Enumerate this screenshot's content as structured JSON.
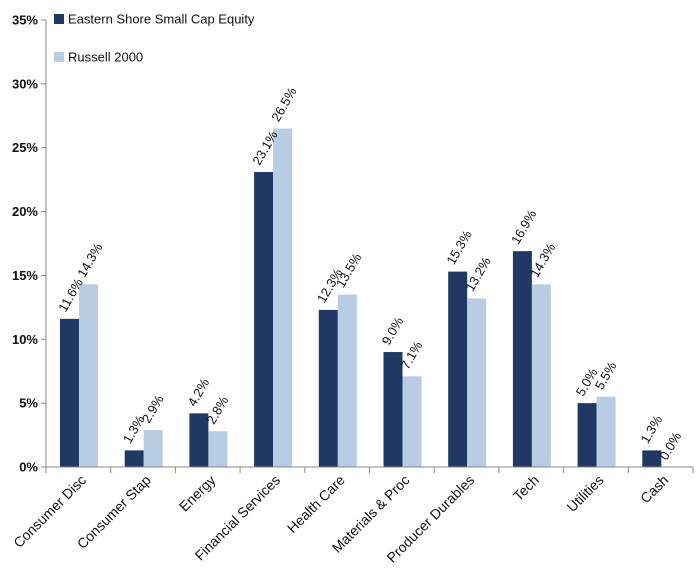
{
  "chart_data": {
    "type": "bar",
    "categories": [
      "Consumer Disc",
      "Consumer Stap",
      "Energy",
      "Financial Services",
      "Health Care",
      "Materials & Proc",
      "Producer Durables",
      "Tech",
      "Utilities",
      "Cash"
    ],
    "series": [
      {
        "name": "Eastern Shore Small Cap Equity",
        "color": "#1f3864",
        "values": [
          11.6,
          1.3,
          4.2,
          23.1,
          12.3,
          9.0,
          15.3,
          16.9,
          5.0,
          1.3
        ],
        "labels": [
          "11.6%",
          "1.3%",
          "4.2%",
          "23.1%",
          "12.3%",
          "9.0%",
          "15.3%",
          "16.9%",
          "5.0%",
          "1.3%"
        ]
      },
      {
        "name": "Russell 2000",
        "color": "#b8cde4",
        "values": [
          14.3,
          2.9,
          2.8,
          26.5,
          13.5,
          7.1,
          13.2,
          14.3,
          5.5,
          0.0
        ],
        "labels": [
          "14.3%",
          "2.9%",
          "2.8%",
          "26.5%",
          "13.5%",
          "7.1%",
          "13.2%",
          "14.3%",
          "5.5%",
          "0.0%"
        ]
      }
    ],
    "title": "",
    "xlabel": "",
    "ylabel": "",
    "ylim": [
      0,
      35
    ],
    "yticks": [
      0,
      5,
      10,
      15,
      20,
      25,
      30,
      35
    ],
    "ytick_labels": [
      "0%",
      "5%",
      "10%",
      "15%",
      "20%",
      "25%",
      "30%",
      "35%"
    ],
    "grid": false,
    "legend_position": "top-left",
    "axis_color": "#888888"
  }
}
